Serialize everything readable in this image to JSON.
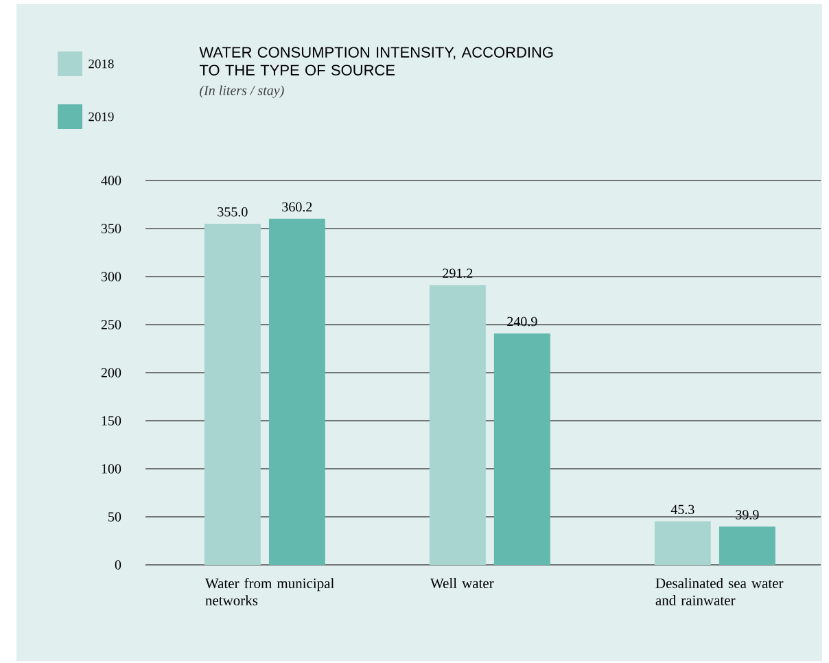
{
  "chart_data": {
    "type": "bar",
    "title": "WATER CONSUMPTION INTENSITY, ACCORDING TO THE TYPE OF SOURCE",
    "subtitle": "(In liters / stay)",
    "categories": [
      "Water from municipal networks",
      "Well water",
      "Desalinated sea water and rainwater"
    ],
    "series": [
      {
        "name": "2018",
        "color": "#a8d5d0",
        "values": [
          355.0,
          291.2,
          45.3
        ],
        "value_labels": [
          "355.0",
          "291.2",
          "45.3"
        ]
      },
      {
        "name": "2019",
        "color": "#64b9ae",
        "values": [
          360.2,
          240.9,
          39.9
        ],
        "value_labels": [
          "360.2",
          "240.9",
          "39.9"
        ]
      }
    ],
    "ylim": [
      0,
      400
    ],
    "yticks": [
      0,
      50,
      100,
      150,
      200,
      250,
      300,
      350,
      400
    ],
    "grid": "y",
    "legend": "top left"
  }
}
